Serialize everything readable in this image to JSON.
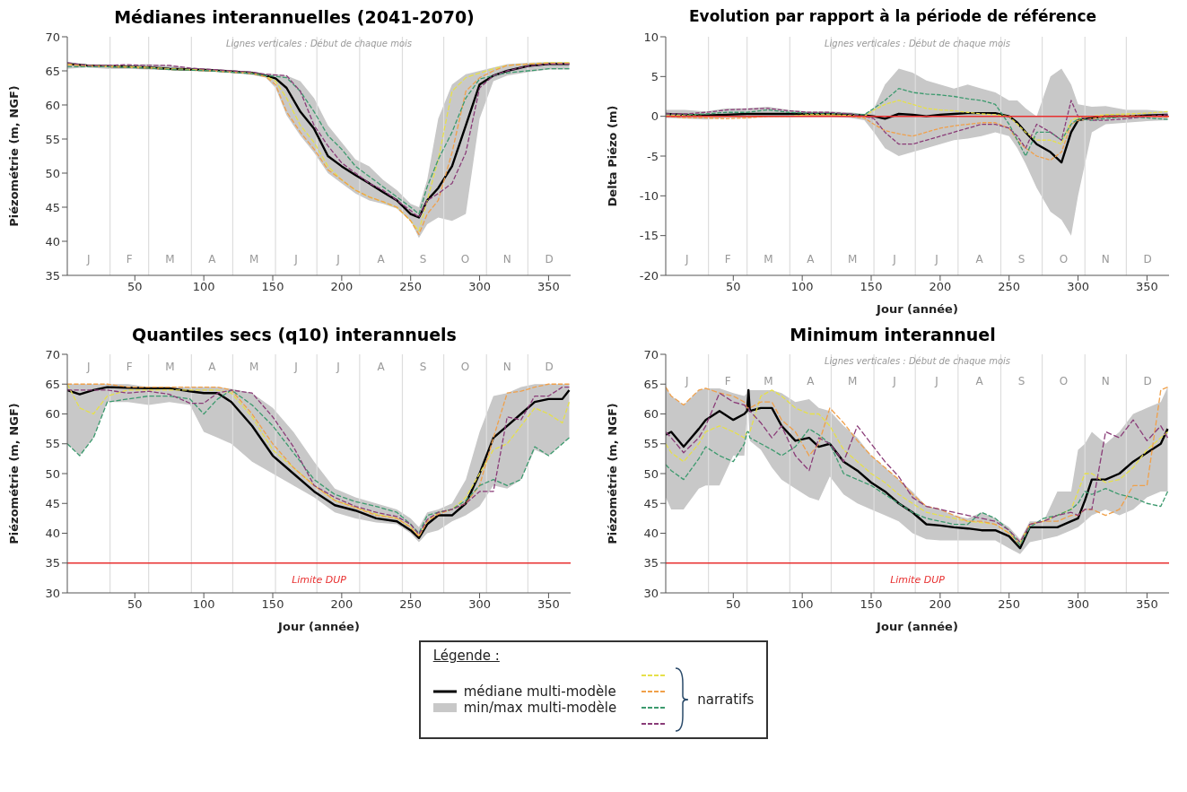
{
  "chart_data": [
    {
      "type": "line",
      "title": "Médianes interannuelles (2041-2070)",
      "ylabel": "Piézométrie (m, NGF)",
      "xlim": [
        1,
        366
      ],
      "xticks": [
        50,
        100,
        150,
        200,
        250,
        300,
        350
      ],
      "ylim": [
        35,
        70
      ],
      "yticks": [
        35,
        40,
        45,
        50,
        55,
        60,
        65,
        70
      ],
      "x": [
        1,
        15,
        30,
        45,
        60,
        75,
        90,
        105,
        120,
        135,
        145,
        152,
        160,
        170,
        180,
        190,
        200,
        210,
        220,
        230,
        240,
        250,
        256,
        262,
        270,
        280,
        290,
        300,
        310,
        320,
        335,
        350,
        365
      ],
      "series": [
        {
          "color": "#e6e04a",
          "line_style": "dashed",
          "values": [
            66,
            65.8,
            65.7,
            65.6,
            65.5,
            65.3,
            65.2,
            65.1,
            64.9,
            64.7,
            64.2,
            63.5,
            61,
            57,
            54.5,
            51,
            49,
            47.5,
            46.5,
            45.8,
            45,
            43,
            41.5,
            46,
            52,
            62,
            64,
            64.7,
            65.3,
            65.8,
            66,
            66.2,
            66.2
          ]
        },
        {
          "color": "#f0a04a",
          "line_style": "dashed",
          "values": [
            65.9,
            65.7,
            65.6,
            65.5,
            65.4,
            65.2,
            65.1,
            65,
            64.8,
            64.6,
            64.1,
            63,
            59,
            56,
            53.5,
            50.5,
            49,
            47.5,
            46.5,
            45.8,
            45,
            43,
            41,
            44,
            46,
            53,
            62,
            64,
            65,
            65.8,
            66,
            66.1,
            66.1
          ]
        },
        {
          "color": "#3c9a6e",
          "line_style": "dashed",
          "values": [
            65.6,
            65.6,
            65.6,
            65.5,
            65.4,
            65.2,
            65.1,
            65,
            64.8,
            64.6,
            64.3,
            64.2,
            64,
            62,
            59,
            55.5,
            53.5,
            51,
            49.5,
            48,
            46.5,
            45,
            44,
            48,
            52,
            56,
            61,
            63.8,
            64.3,
            64.7,
            65,
            65.3,
            65.3
          ]
        },
        {
          "color": "#8a3c78",
          "line_style": "dashed",
          "values": [
            66.2,
            65.8,
            65.8,
            65.9,
            65.8,
            65.8,
            65.4,
            65.2,
            65,
            64.8,
            64.5,
            64.4,
            64.3,
            62,
            57,
            54,
            51.5,
            50,
            48.5,
            47.5,
            46,
            44.5,
            43.5,
            46,
            47,
            48.5,
            53,
            62.5,
            64.3,
            65,
            65.7,
            66,
            66
          ]
        },
        {
          "color": "#000000",
          "values": [
            66,
            65.8,
            65.7,
            65.6,
            65.5,
            65.3,
            65.2,
            65.1,
            64.9,
            64.7,
            64.3,
            63.9,
            62.5,
            59,
            56.5,
            52.5,
            51,
            49.7,
            48.5,
            47.2,
            46,
            44,
            43.5,
            46,
            47.8,
            51,
            57,
            63,
            64.3,
            65,
            65.7,
            66,
            66
          ],
          "lower": [
            65.3,
            65.5,
            65.3,
            65.3,
            65.2,
            65.1,
            65,
            64.9,
            64.7,
            64.4,
            64,
            62.5,
            58.5,
            55.5,
            53,
            50,
            48.5,
            47,
            46,
            45.5,
            44.8,
            43,
            40.5,
            42.5,
            43.5,
            43,
            44,
            58,
            63.5,
            64.3,
            64.8,
            65.2,
            65.2
          ],
          "upper": [
            66.3,
            66,
            65.9,
            65.9,
            66,
            65.8,
            65.5,
            65.3,
            65.1,
            64.9,
            64.6,
            64.5,
            64.3,
            63.5,
            61,
            57,
            54.5,
            52,
            51,
            49,
            47.5,
            45.5,
            45,
            49,
            58,
            63,
            64.5,
            65,
            65.5,
            66,
            66.2,
            66.3,
            66.3
          ]
        }
      ],
      "ref_lines": [
        {
          "axis": "x",
          "value": 32,
          "color": "#dddddd"
        },
        {
          "axis": "x",
          "value": 60,
          "color": "#dddddd"
        },
        {
          "axis": "x",
          "value": 91,
          "color": "#dddddd"
        },
        {
          "axis": "x",
          "value": 121,
          "color": "#dddddd"
        },
        {
          "axis": "x",
          "value": 152,
          "color": "#dddddd"
        },
        {
          "axis": "x",
          "value": 182,
          "color": "#dddddd"
        },
        {
          "axis": "x",
          "value": 213,
          "color": "#dddddd"
        },
        {
          "axis": "x",
          "value": 244,
          "color": "#dddddd"
        },
        {
          "axis": "x",
          "value": 274,
          "color": "#dddddd"
        },
        {
          "axis": "x",
          "value": 305,
          "color": "#dddddd"
        },
        {
          "axis": "x",
          "value": 335,
          "color": "#dddddd"
        }
      ],
      "annotations": [
        "Lignes verticales : Début de chaque mois",
        "J",
        "F",
        "M",
        "A",
        "M",
        "J",
        "J",
        "A",
        "S",
        "O",
        "N",
        "D"
      ]
    },
    {
      "type": "line",
      "title": "Evolution par rapport à la période de référence",
      "xlabel": "Jour (année)",
      "ylabel": "Delta Piézo (m)",
      "xlim": [
        1,
        366
      ],
      "xticks": [
        50,
        100,
        150,
        200,
        250,
        300,
        350
      ],
      "ylim": [
        -20,
        10
      ],
      "yticks": [
        -20,
        -15,
        -10,
        -5,
        0,
        5,
        10
      ],
      "x": [
        1,
        15,
        30,
        45,
        60,
        75,
        90,
        105,
        120,
        135,
        145,
        152,
        160,
        170,
        180,
        190,
        200,
        210,
        220,
        230,
        240,
        250,
        256,
        262,
        270,
        280,
        288,
        295,
        300,
        310,
        320,
        335,
        350,
        365
      ],
      "series": [
        {
          "color": "#e6e04a",
          "line_style": "dashed",
          "values": [
            0.2,
            0.1,
            0,
            0,
            0,
            0,
            0,
            0.2,
            0.2,
            0.1,
            0,
            0.8,
            1.5,
            2,
            1.5,
            1,
            0.8,
            0.7,
            0.5,
            0.3,
            0.2,
            0,
            -1,
            -2,
            -3,
            -3,
            -3.5,
            -0.5,
            -0.2,
            0,
            0.2,
            0.3,
            0.4,
            0.6
          ]
        },
        {
          "color": "#f0a04a",
          "line_style": "dashed",
          "values": [
            0,
            -0.2,
            -0.2,
            -0.3,
            -0.2,
            0,
            0,
            0.1,
            0.1,
            0,
            -0.2,
            -1,
            -1.8,
            -2.2,
            -2.5,
            -2,
            -1.5,
            -1.2,
            -1,
            -0.8,
            -0.8,
            -1.5,
            -3,
            -4,
            -5,
            -5.5,
            -4.5,
            -1,
            -0.5,
            -0.3,
            0,
            0.1,
            0,
            -0.1
          ]
        },
        {
          "color": "#3c9a6e",
          "line_style": "dashed",
          "values": [
            0.3,
            0.2,
            0.3,
            0.5,
            0.5,
            0.8,
            0.5,
            0.4,
            0.4,
            0.3,
            0.2,
            1,
            2,
            3.5,
            3,
            2.8,
            2.7,
            2.5,
            2.2,
            2,
            1.5,
            -1,
            -3,
            -5,
            -2,
            -2,
            -3,
            -1,
            -0.3,
            -0.5,
            -0.3,
            0,
            -0.2,
            -0.4
          ]
        },
        {
          "color": "#8a3c78",
          "line_style": "dashed",
          "values": [
            0.3,
            0.3,
            0.5,
            0.8,
            0.9,
            1,
            0.7,
            0.5,
            0.5,
            0.3,
            0,
            -0.3,
            -2,
            -3.5,
            -3.5,
            -3,
            -2.5,
            -2,
            -1.5,
            -1,
            -1,
            -1.5,
            -2.5,
            -4,
            -1,
            -2,
            -3,
            2,
            0,
            -0.5,
            -0.5,
            -0.3,
            0,
            0.2
          ]
        },
        {
          "color": "#000000",
          "values": [
            0.3,
            0.2,
            0.1,
            0.2,
            0.3,
            0.3,
            0.3,
            0.3,
            0.3,
            0.2,
            0.1,
            0,
            -0.3,
            0.3,
            0.2,
            0,
            0.2,
            0.3,
            0.4,
            0.4,
            0.4,
            0,
            -0.8,
            -2,
            -3.5,
            -4.5,
            -5.8,
            -2,
            -0.5,
            -0.2,
            0,
            0,
            0.1,
            0.2
          ],
          "lower": [
            -0.2,
            -0.3,
            -0.4,
            -0.2,
            -0.2,
            -0.1,
            -0.1,
            -0.1,
            -0.1,
            -0.2,
            -0.5,
            -2,
            -4,
            -5,
            -4.5,
            -4,
            -3.5,
            -3,
            -2.8,
            -2.5,
            -2,
            -2.5,
            -4,
            -6,
            -9,
            -12,
            -13,
            -15,
            -10,
            -2,
            -1,
            -0.8,
            -0.6,
            -0.5
          ],
          "upper": [
            0.8,
            0.8,
            0.6,
            1,
            1,
            1.2,
            0.8,
            0.6,
            0.6,
            0.5,
            0.3,
            1,
            4,
            6,
            5.5,
            4.5,
            4,
            3.5,
            4,
            3.5,
            3,
            2,
            2,
            1,
            0,
            5,
            6,
            4,
            1.5,
            1.2,
            1.3,
            0.8,
            0.8,
            0.6
          ]
        }
      ],
      "ref_lines": [
        {
          "axis": "x",
          "value": 32,
          "color": "#dddddd"
        },
        {
          "axis": "x",
          "value": 60,
          "color": "#dddddd"
        },
        {
          "axis": "x",
          "value": 91,
          "color": "#dddddd"
        },
        {
          "axis": "x",
          "value": 121,
          "color": "#dddddd"
        },
        {
          "axis": "x",
          "value": 152,
          "color": "#dddddd"
        },
        {
          "axis": "x",
          "value": 182,
          "color": "#dddddd"
        },
        {
          "axis": "x",
          "value": 213,
          "color": "#dddddd"
        },
        {
          "axis": "x",
          "value": 244,
          "color": "#dddddd"
        },
        {
          "axis": "x",
          "value": 274,
          "color": "#dddddd"
        },
        {
          "axis": "x",
          "value": 305,
          "color": "#dddddd"
        },
        {
          "axis": "x",
          "value": 335,
          "color": "#dddddd"
        },
        {
          "axis": "y",
          "value": 0,
          "color": "#e83030"
        }
      ],
      "annotations": [
        "Lignes verticales : Début de chaque mois",
        "J",
        "F",
        "M",
        "A",
        "M",
        "J",
        "J",
        "A",
        "S",
        "O",
        "N",
        "D"
      ]
    },
    {
      "type": "line",
      "title": "Quantiles secs (q10) interannuels",
      "xlabel": "Jour (année)",
      "ylabel": "Piézométrie (m, NGF)",
      "xlim": [
        1,
        366
      ],
      "xticks": [
        50,
        100,
        150,
        200,
        250,
        300,
        350
      ],
      "ylim": [
        30,
        70
      ],
      "yticks": [
        30,
        35,
        40,
        45,
        50,
        55,
        60,
        65,
        70
      ],
      "x": [
        1,
        10,
        20,
        30,
        45,
        60,
        75,
        90,
        100,
        110,
        120,
        135,
        150,
        165,
        180,
        195,
        210,
        225,
        240,
        250,
        256,
        262,
        270,
        280,
        290,
        300,
        310,
        320,
        330,
        340,
        350,
        360,
        365
      ],
      "series": [
        {
          "color": "#e6e04a",
          "line_style": "dashed",
          "values": [
            65,
            61,
            60,
            63,
            64,
            64,
            64,
            64,
            64,
            64,
            63.5,
            59.5,
            54,
            51,
            48,
            45.5,
            44.3,
            43.2,
            42.5,
            41,
            39.5,
            42,
            43.5,
            44,
            46,
            50,
            54,
            55,
            58,
            61,
            60,
            58.5,
            62
          ]
        },
        {
          "color": "#f0a04a",
          "line_style": "dashed",
          "values": [
            65,
            65,
            65,
            65,
            64.5,
            64.5,
            64.5,
            64.5,
            64.5,
            64.5,
            64,
            60,
            55,
            51,
            48,
            45.5,
            44.3,
            43,
            42.5,
            41,
            39.5,
            42,
            43.2,
            44,
            45,
            48,
            56,
            63.5,
            63.8,
            64.5,
            65,
            65,
            65
          ]
        },
        {
          "color": "#3c9a6e",
          "line_style": "dashed",
          "values": [
            55,
            53,
            56,
            62,
            62.5,
            63,
            63,
            62.5,
            60,
            62.5,
            64,
            61.5,
            58,
            53.5,
            49,
            46.5,
            45.3,
            44.5,
            43.5,
            41.5,
            40,
            43,
            43.5,
            44,
            45.5,
            48,
            49,
            48,
            49,
            54.5,
            53,
            55,
            56
          ]
        },
        {
          "color": "#8a3c78",
          "line_style": "dashed",
          "values": [
            64,
            64,
            64,
            64,
            63.5,
            63.8,
            63.3,
            61.8,
            61.8,
            63.5,
            64,
            63.5,
            59.5,
            54.5,
            48,
            46,
            44.5,
            43.5,
            42.8,
            41.5,
            39.8,
            42.3,
            43.5,
            44,
            45,
            47,
            47,
            59.5,
            59,
            63,
            63,
            64.5,
            64.5
          ]
        },
        {
          "color": "#000000",
          "values": [
            64,
            63.3,
            64,
            64.5,
            64.4,
            64.3,
            64.3,
            63.8,
            63.5,
            63.5,
            62,
            58,
            53,
            50,
            47,
            44.7,
            43.8,
            42.5,
            42,
            40.5,
            39.2,
            41.5,
            43,
            43,
            45,
            50,
            56,
            58,
            60,
            62,
            62.5,
            62.5,
            64
          ],
          "lower": [
            55,
            53,
            56,
            62,
            62,
            61.5,
            62,
            61.5,
            57,
            56,
            55,
            52,
            50,
            48,
            46,
            43.5,
            42.5,
            41.8,
            41.5,
            40,
            38.5,
            40,
            40.5,
            42,
            43,
            44.5,
            48,
            47.5,
            49,
            54,
            53,
            55,
            56
          ],
          "upper": [
            65,
            65,
            65,
            65,
            65,
            64.5,
            64.5,
            64.5,
            64.5,
            64.5,
            64.2,
            63.5,
            61,
            57,
            52,
            47.5,
            46,
            45,
            44,
            42.5,
            41,
            43.5,
            44,
            45,
            49,
            57,
            63,
            63.5,
            64.5,
            65,
            65,
            65,
            65
          ]
        }
      ],
      "ref_lines": [
        {
          "axis": "x",
          "value": 32,
          "color": "#dddddd"
        },
        {
          "axis": "x",
          "value": 60,
          "color": "#dddddd"
        },
        {
          "axis": "x",
          "value": 91,
          "color": "#dddddd"
        },
        {
          "axis": "x",
          "value": 121,
          "color": "#dddddd"
        },
        {
          "axis": "x",
          "value": 152,
          "color": "#dddddd"
        },
        {
          "axis": "x",
          "value": 182,
          "color": "#dddddd"
        },
        {
          "axis": "x",
          "value": 213,
          "color": "#dddddd"
        },
        {
          "axis": "x",
          "value": 244,
          "color": "#dddddd"
        },
        {
          "axis": "x",
          "value": 274,
          "color": "#dddddd"
        },
        {
          "axis": "x",
          "value": 305,
          "color": "#dddddd"
        },
        {
          "axis": "x",
          "value": 335,
          "color": "#dddddd"
        },
        {
          "axis": "y",
          "value": 35,
          "label": "Limite DUP",
          "color": "#e83030"
        }
      ],
      "annotations": [
        "J",
        "F",
        "M",
        "A",
        "M",
        "J",
        "J",
        "A",
        "S",
        "O",
        "N",
        "D"
      ]
    },
    {
      "type": "line",
      "title": "Minimum interannuel",
      "xlabel": "Jour (année)",
      "ylabel": "Piézométrie (m, NGF)",
      "xlim": [
        1,
        366
      ],
      "xticks": [
        50,
        100,
        150,
        200,
        250,
        300,
        350
      ],
      "ylim": [
        30,
        70
      ],
      "yticks": [
        30,
        35,
        40,
        45,
        50,
        55,
        60,
        65,
        70
      ],
      "legend": "bottom",
      "legend_title": "Légende :",
      "x": [
        1,
        5,
        14,
        25,
        30,
        40,
        50,
        58,
        60,
        61,
        62,
        70,
        78,
        85,
        95,
        105,
        112,
        120,
        130,
        140,
        150,
        160,
        170,
        180,
        190,
        200,
        210,
        220,
        230,
        240,
        250,
        258,
        265,
        275,
        285,
        295,
        300,
        305,
        310,
        320,
        330,
        340,
        350,
        360,
        365
      ],
      "series": [
        {
          "color": "#e6e04a",
          "line_style": "dashed",
          "values": [
            55,
            53.5,
            52,
            55,
            57,
            58,
            57,
            56,
            57,
            57,
            57,
            63,
            64,
            63,
            61,
            60,
            60,
            58,
            54,
            52,
            50,
            48.5,
            46.5,
            45,
            43.5,
            43,
            42.5,
            42,
            41.8,
            41.5,
            40,
            38.5,
            41.5,
            42,
            43,
            44,
            47,
            50,
            50,
            48.5,
            49,
            51,
            54,
            56,
            57
          ]
        },
        {
          "color": "#f0a04a",
          "line_style": "dashed",
          "values": [
            64.5,
            63,
            61.5,
            64,
            64.3,
            63.5,
            63,
            62,
            61,
            61,
            61,
            62,
            62,
            59,
            57,
            53,
            55,
            61,
            58.5,
            55.5,
            53,
            51,
            49,
            46.5,
            44.5,
            44,
            43,
            42,
            42,
            41.5,
            40,
            38,
            41.5,
            42,
            42,
            43,
            43,
            44,
            44,
            43,
            44,
            48,
            48,
            64,
            64.5
          ]
        },
        {
          "color": "#3c9a6e",
          "line_style": "dashed",
          "values": [
            51.5,
            50.5,
            49,
            52.5,
            54.5,
            53,
            52,
            55,
            57,
            57,
            56,
            55,
            54,
            53,
            54.5,
            57.5,
            56.5,
            55,
            50,
            49,
            48,
            46.5,
            45,
            43.5,
            42.5,
            42,
            41.5,
            41.5,
            43.5,
            42.5,
            40.5,
            38,
            41,
            42.5,
            43,
            44,
            45,
            47,
            46.5,
            47.5,
            46.5,
            46,
            45,
            44.5,
            47
          ]
        },
        {
          "color": "#8a3c78",
          "line_style": "dashed",
          "values": [
            57,
            56,
            53.5,
            56,
            58,
            63.5,
            62,
            61.5,
            61,
            61,
            60.5,
            58.5,
            56,
            58,
            53,
            50.5,
            56,
            55,
            52,
            58,
            55,
            52,
            49.5,
            46,
            44.5,
            44,
            43.5,
            43,
            42.5,
            42,
            40.5,
            38.5,
            41.5,
            42,
            43,
            43.5,
            43,
            44,
            44,
            57,
            56,
            59,
            55.5,
            58,
            56
          ]
        },
        {
          "name": "médiane multi-modèle",
          "color": "#000000",
          "values": [
            56.5,
            57,
            54.5,
            57.5,
            59,
            60.5,
            59,
            60,
            60.5,
            64,
            60.5,
            61,
            61,
            58,
            55.5,
            56,
            54.5,
            55,
            52,
            50.5,
            48.5,
            47,
            45,
            43.5,
            41.5,
            41.3,
            41,
            40.8,
            40.5,
            40.5,
            39.5,
            37.5,
            41,
            41,
            41,
            42,
            42.5,
            45.5,
            49,
            49,
            50,
            52,
            53.5,
            55,
            57.5
          ],
          "lower": [
            46,
            44,
            44,
            47.5,
            48,
            48,
            53,
            53,
            60,
            60,
            55.5,
            54,
            51,
            49,
            47.5,
            46,
            45.5,
            49.5,
            46.5,
            45,
            44,
            43,
            42,
            40,
            39,
            38.8,
            38.8,
            38.8,
            38.8,
            38.8,
            37.5,
            36.5,
            38.5,
            39,
            39.5,
            40.5,
            41,
            42,
            43,
            44,
            43,
            44,
            46,
            47,
            47
          ],
          "upper": [
            64.5,
            63,
            61.5,
            64,
            64.3,
            64.3,
            63.5,
            63,
            63.5,
            64,
            64,
            64,
            64,
            63.5,
            62,
            62.5,
            61,
            60.5,
            58,
            56,
            53,
            51,
            49,
            47,
            44.5,
            44,
            43,
            42.5,
            43.5,
            42.5,
            41,
            39,
            42,
            42,
            47,
            47,
            54,
            55,
            57,
            55,
            57,
            60,
            61,
            62,
            64.5
          ]
        }
      ],
      "ref_lines": [
        {
          "axis": "x",
          "value": 32,
          "color": "#dddddd"
        },
        {
          "axis": "x",
          "value": 60,
          "color": "#dddddd"
        },
        {
          "axis": "x",
          "value": 91,
          "color": "#dddddd"
        },
        {
          "axis": "x",
          "value": 121,
          "color": "#dddddd"
        },
        {
          "axis": "x",
          "value": 152,
          "color": "#dddddd"
        },
        {
          "axis": "x",
          "value": 182,
          "color": "#dddddd"
        },
        {
          "axis": "x",
          "value": 213,
          "color": "#dddddd"
        },
        {
          "axis": "x",
          "value": 244,
          "color": "#dddddd"
        },
        {
          "axis": "x",
          "value": 274,
          "color": "#dddddd"
        },
        {
          "axis": "x",
          "value": 305,
          "color": "#dddddd"
        },
        {
          "axis": "x",
          "value": 335,
          "color": "#dddddd"
        },
        {
          "axis": "y",
          "value": 35,
          "label": "Limite DUP",
          "color": "#e83030"
        }
      ],
      "annotations": [
        "Lignes verticales : Début de chaque mois",
        "min/max multi-modèle",
        "narratifs",
        "J",
        "F",
        "M",
        "A",
        "M",
        "J",
        "J",
        "A",
        "S",
        "O",
        "N",
        "D"
      ]
    }
  ]
}
